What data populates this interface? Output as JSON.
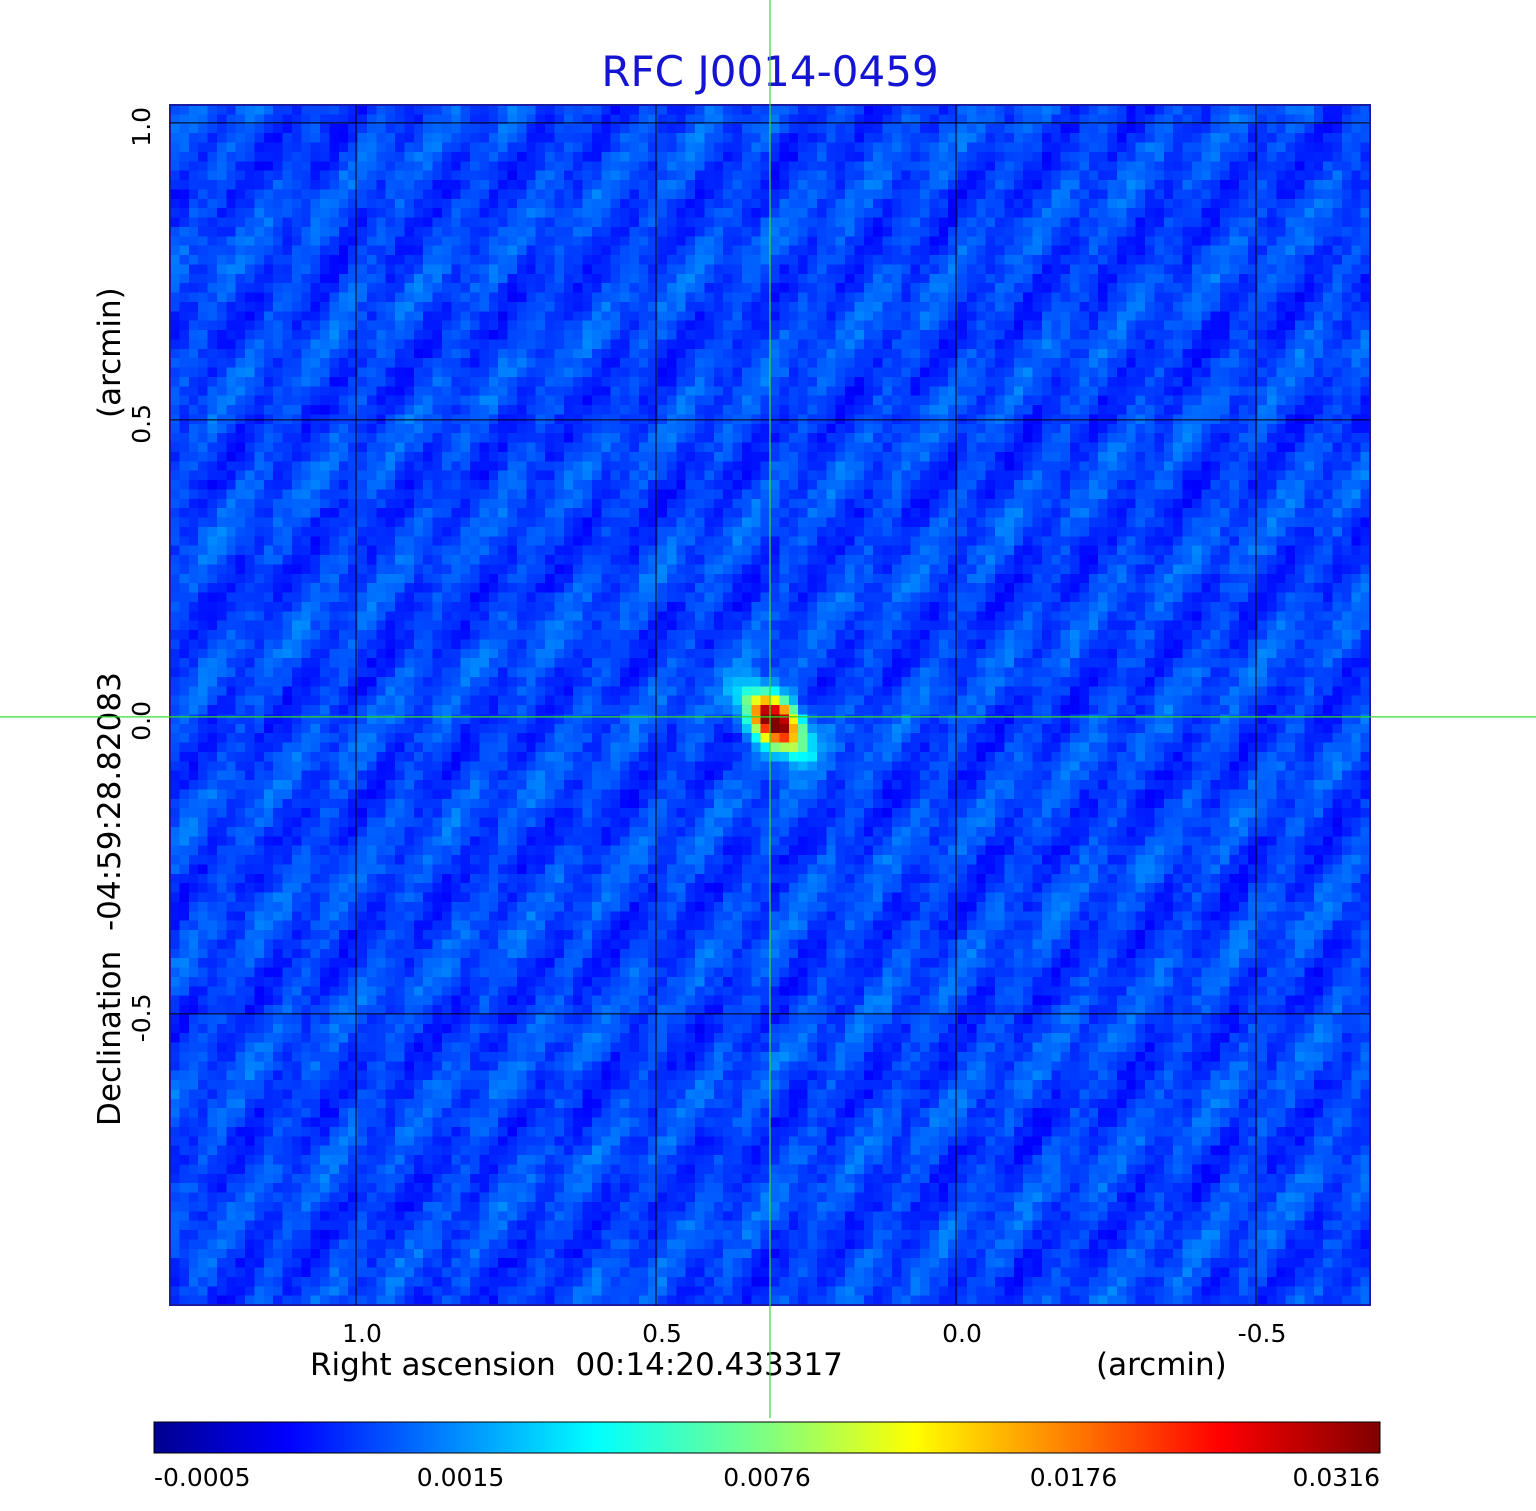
{
  "chart_data": {
    "type": "heatmap",
    "title": "RFC J0014-0459",
    "xlabel": "Right ascension  00:14:20.433317",
    "xunit": "(arcmin)",
    "ylabel": "Declination  -04:59:28.82083",
    "yunit": "(arcmin)",
    "xlim": [
      1.31,
      -0.69
    ],
    "ylim": [
      -0.99,
      1.03
    ],
    "x_ticks": [
      1.0,
      0.5,
      0.0,
      -0.5
    ],
    "x_tick_labels": [
      "1.0",
      "0.5",
      "0.0",
      "-0.5"
    ],
    "y_ticks": [
      1.0,
      0.5,
      0.0,
      -0.5
    ],
    "y_tick_labels": [
      "1.0",
      "0.5",
      "0.0",
      "-0.5"
    ],
    "grid": true,
    "crosshair": {
      "x": 0.31,
      "y": 0.0,
      "color": "#33dd33"
    },
    "source_peak": {
      "x": 0.31,
      "y": 0.0,
      "value": 0.0316
    },
    "colorbar": {
      "ticks": [
        "-0.0005",
        "0.0015",
        "0.0076",
        "0.0176",
        "0.0316"
      ],
      "colormap": "jet"
    }
  }
}
